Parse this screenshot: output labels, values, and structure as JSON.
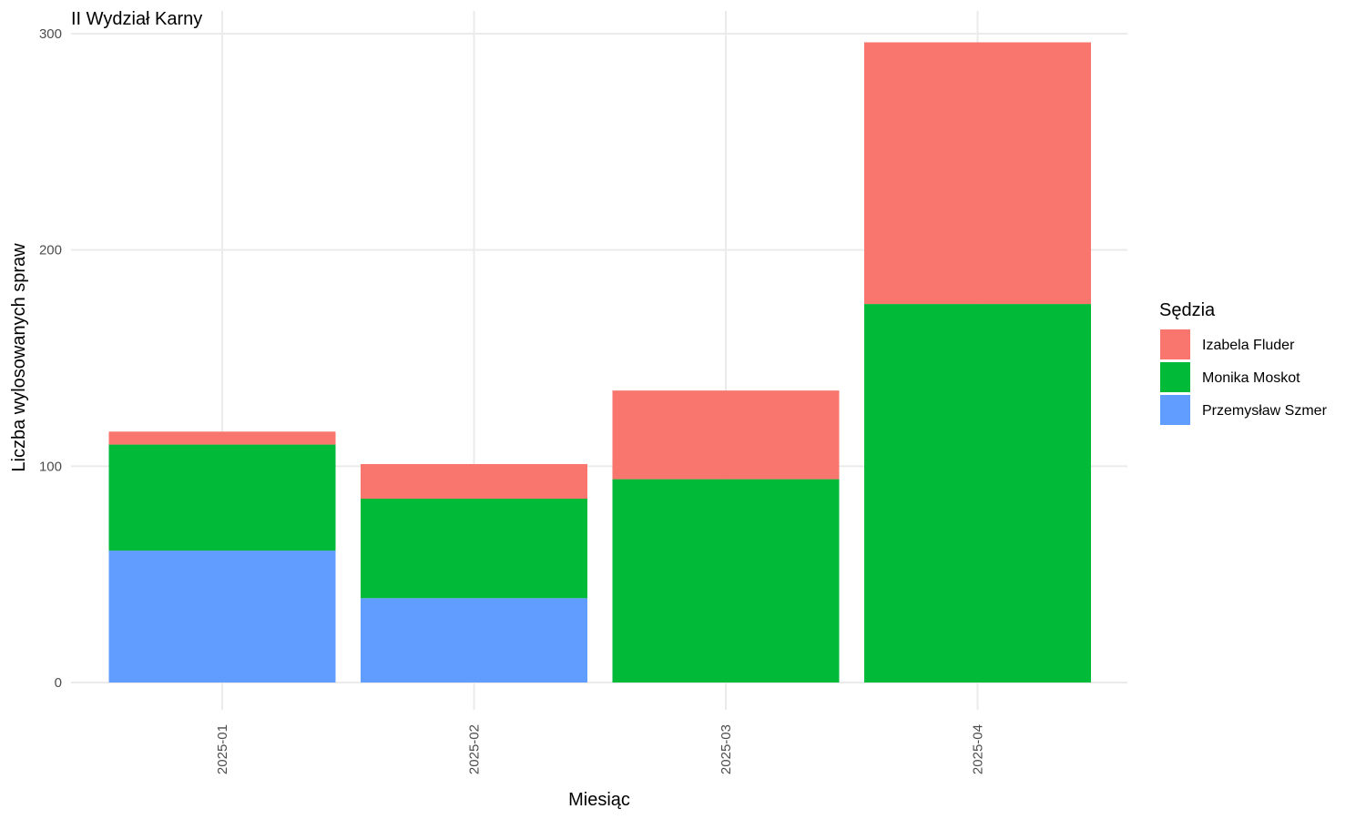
{
  "chart_data": {
    "type": "bar",
    "stacked": true,
    "title": "II Wydział Karny",
    "xlabel": "Miesiąc",
    "ylabel": "Liczba wylosowanych spraw",
    "categories": [
      "2025-01",
      "2025-02",
      "2025-03",
      "2025-04"
    ],
    "ylim": [
      0,
      300
    ],
    "yticks": [
      0,
      100,
      200,
      300
    ],
    "grid": true,
    "legend": {
      "title": "Sędzia",
      "position": "right"
    },
    "series": [
      {
        "name": "Przemysław Szmer",
        "color": "#619CFF",
        "values": [
          61,
          39,
          0,
          0
        ]
      },
      {
        "name": "Monika Moskot",
        "color": "#00BA38",
        "values": [
          49,
          46,
          94,
          175
        ]
      },
      {
        "name": "Izabela Fluder",
        "color": "#F8766D",
        "values": [
          6,
          16,
          41,
          121
        ]
      }
    ],
    "legend_order": [
      "Izabela Fluder",
      "Monika Moskot",
      "Przemysław Szmer"
    ]
  }
}
